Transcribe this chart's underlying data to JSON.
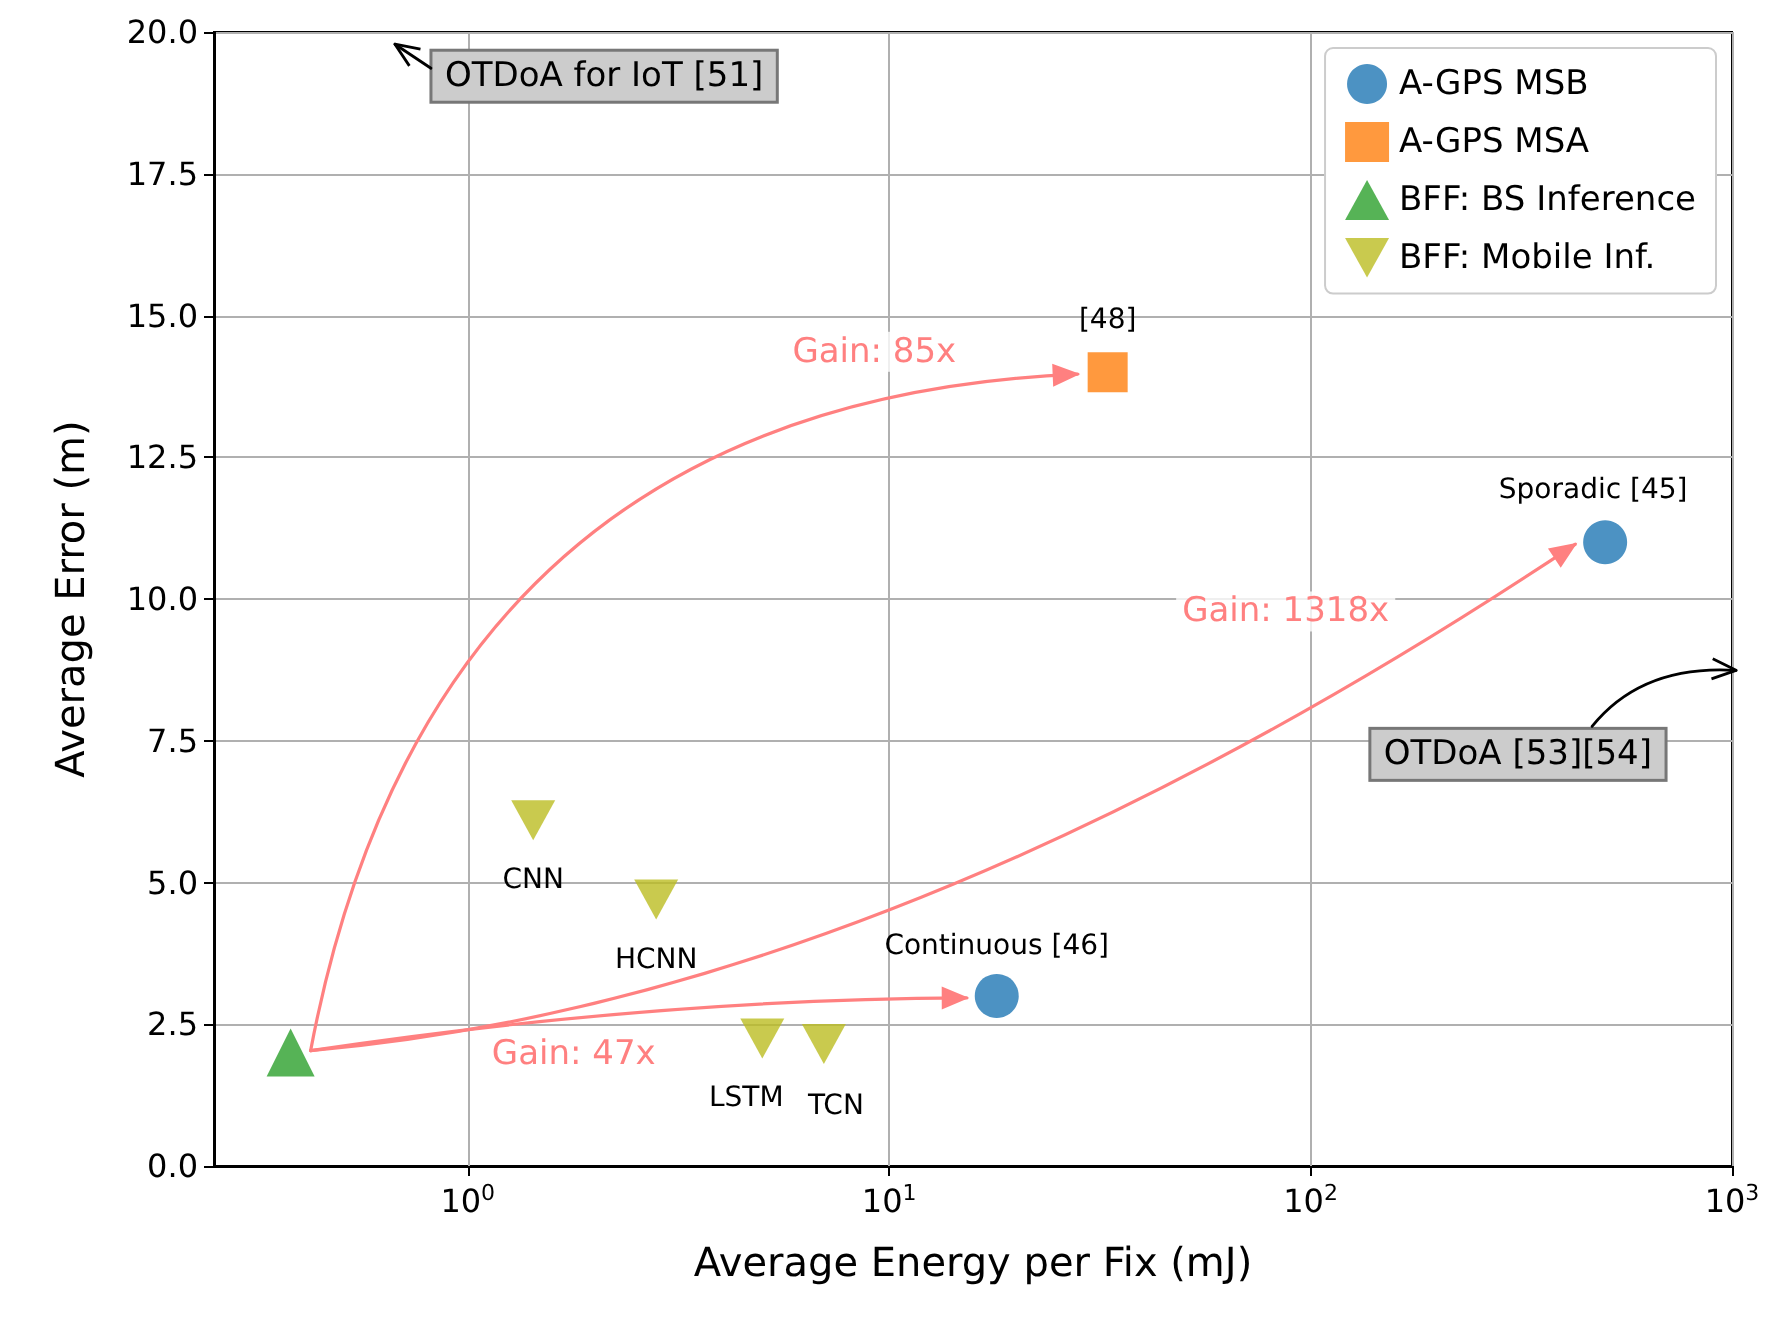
{
  "chart_data": {
    "type": "scatter",
    "xlabel": "Average Energy per Fix (mJ)",
    "ylabel": "Average Error (m)",
    "log": "x",
    "grid": true,
    "legend": "top right",
    "xlim": [
      0.25,
      1000
    ],
    "xticks": [
      {
        "value": 1,
        "label": "10$^{0}$"
      },
      {
        "value": 10,
        "label": "10$^{1}$"
      },
      {
        "value": 100,
        "label": "10$^{2}$"
      },
      {
        "value": 1000,
        "label": "10$^{3}$"
      }
    ],
    "ylim": [
      0,
      20
    ],
    "yticks": [
      {
        "value": 0,
        "label": "0.0"
      },
      2.5,
      {
        "value": 5,
        "label": "5.0"
      },
      7.5,
      {
        "value": 10,
        "label": "10.0"
      },
      12.5,
      {
        "value": 15,
        "label": "15.0"
      },
      17.5,
      {
        "value": 20,
        "label": "20.0"
      }
    ],
    "series": [
      {
        "name": "A-GPS MSB",
        "color": "#1f77b4",
        "marker": "circle",
        "x": [
          18,
          500
        ],
        "values": [
          3,
          11
        ]
      },
      {
        "name": "A-GPS MSA",
        "color": "#ff7f0e",
        "marker": "square",
        "x": [
          33
        ],
        "values": [
          14
        ]
      },
      {
        "name": "BFF: BS Inference",
        "color": "#2ca02c",
        "marker": "triangle",
        "x": [
          0.38
        ],
        "values": [
          2
        ]
      },
      {
        "name": "BFF: Mobile Inf.",
        "color": "#bcbd22",
        "marker": "triangle-down",
        "x": [
          1.43,
          2.8,
          5,
          7
        ],
        "values": [
          6.1,
          4.7,
          2.25,
          2.15
        ]
      }
    ],
    "annotations": [
      {
        "text": "[48]",
        "x": 33,
        "y": 14
      },
      {
        "text": "Sporadic [45]",
        "x": 500,
        "y": 11
      },
      {
        "text": "Continuous [46]",
        "x": 18,
        "y": 3
      },
      {
        "text": "CNN",
        "x": 1.43,
        "y": 6.1
      },
      {
        "text": "HCNN",
        "x": 2.8,
        "y": 4.7
      },
      {
        "text": "LSTM",
        "x": 5,
        "y": 2.25
      },
      {
        "text": "TCN",
        "x": 7,
        "y": 2.15
      },
      "Gain: 85x",
      "Gain: 1318x",
      "Gain: 47x",
      "OTDoA for IoT [51]",
      "OTDoA [53][54]"
    ]
  }
}
